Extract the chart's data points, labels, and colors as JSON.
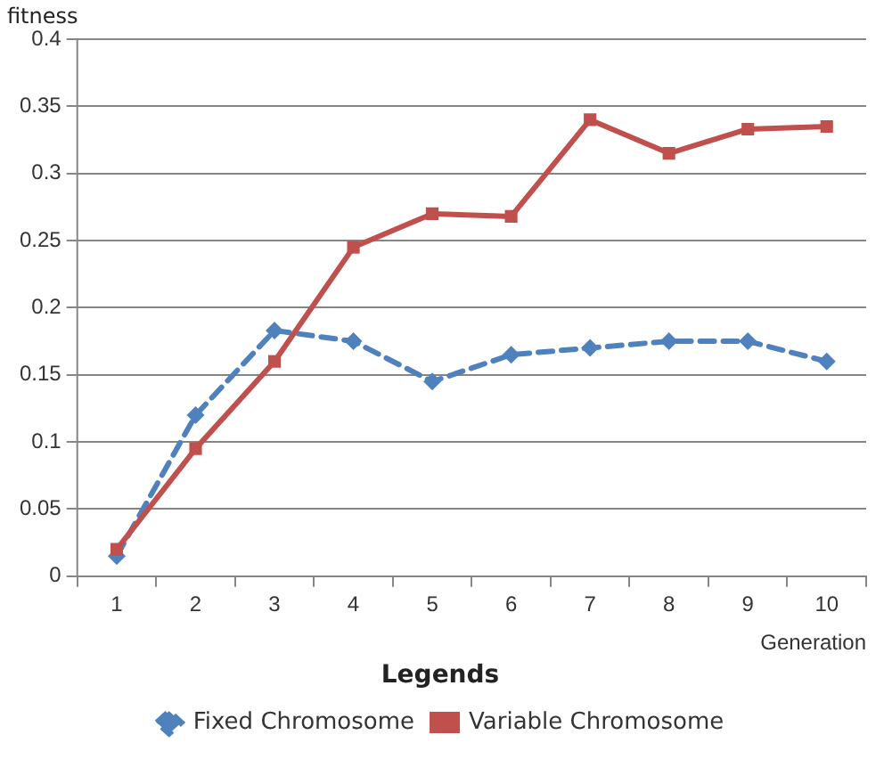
{
  "chart_data": {
    "type": "line",
    "xlabel": "Generation",
    "ylabel": "fitness",
    "legend_title": "Legends",
    "categories": [
      "1",
      "2",
      "3",
      "4",
      "5",
      "6",
      "7",
      "8",
      "9",
      "10"
    ],
    "series": [
      {
        "name": "Fixed Chromosome",
        "color": "#4f81bd",
        "marker": "diamond",
        "line_style": "dashed",
        "values": [
          0.015,
          0.12,
          0.183,
          0.175,
          0.145,
          0.165,
          0.17,
          0.175,
          0.175,
          0.16
        ]
      },
      {
        "name": "Variable Chromosome",
        "color": "#c0504d",
        "marker": "square",
        "line_style": "solid",
        "values": [
          0.02,
          0.095,
          0.16,
          0.245,
          0.27,
          0.268,
          0.34,
          0.315,
          0.333,
          0.335
        ]
      }
    ],
    "ylim": [
      0,
      0.4
    ],
    "yticks": [
      0,
      0.05,
      0.1,
      0.15,
      0.2,
      0.25,
      0.3,
      0.35,
      0.4
    ],
    "grid": "y",
    "legend": "bottom"
  }
}
